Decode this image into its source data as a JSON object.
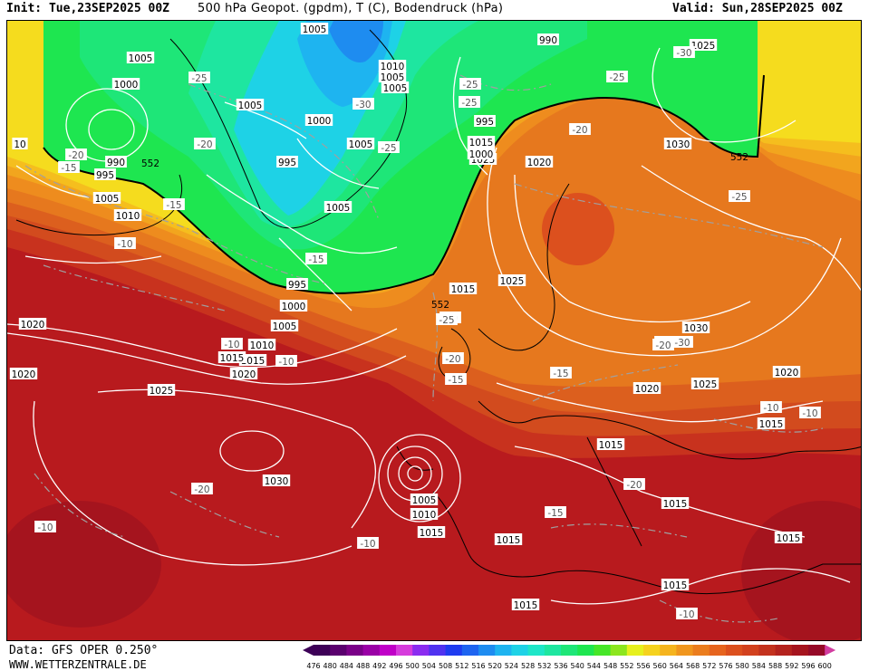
{
  "header": {
    "init": "Init: Tue,23SEP2025 00Z",
    "title": "500 hPa Geopot. (gpdm), T (C), Bodendruck (hPa)",
    "valid": "Valid: Sun,28SEP2025 00Z"
  },
  "footer": {
    "data_source": "Data: GFS OPER 0.250°",
    "website": "WWW.WETTERZENTRALE.DE"
  },
  "colorbar": {
    "levels": [
      "476",
      "480",
      "484",
      "488",
      "492",
      "496",
      "500",
      "504",
      "508",
      "512",
      "516",
      "520",
      "524",
      "528",
      "532",
      "536",
      "540",
      "544",
      "548",
      "552",
      "556",
      "560",
      "564",
      "568",
      "572",
      "576",
      "580",
      "584",
      "588",
      "592",
      "596",
      "600"
    ],
    "colors": [
      "#3d0057",
      "#5a006e",
      "#7a0088",
      "#9a00a6",
      "#c000c8",
      "#d63cdc",
      "#8b2cf0",
      "#5032f0",
      "#1f3cf0",
      "#1e64f0",
      "#1e8cf0",
      "#1eb4f0",
      "#1ed2e6",
      "#1ee6c8",
      "#1ee6a0",
      "#1ee678",
      "#1ee650",
      "#46e628",
      "#8ce61e",
      "#e6f01e",
      "#f5d21e",
      "#f5b41e",
      "#f0961e",
      "#eb7d1e",
      "#e6641e",
      "#dc501e",
      "#d2411e",
      "#c3321e",
      "#b4231e",
      "#a5141e",
      "#960a28",
      "#d23ca0"
    ]
  },
  "map": {
    "contour_line_color": "#ffffff",
    "temperature_line_color": "#a0a0a0",
    "border_color": "#000000",
    "pressure_labels": [
      {
        "text": "1005"
      },
      {
        "text": "1005"
      },
      {
        "text": "1000"
      },
      {
        "text": "1005"
      },
      {
        "text": "990"
      },
      {
        "text": "995"
      },
      {
        "text": "1005"
      },
      {
        "text": "1010"
      },
      {
        "text": "1005"
      },
      {
        "text": "1010"
      },
      {
        "text": "1000"
      },
      {
        "text": "1005"
      },
      {
        "text": "995"
      },
      {
        "text": "1005"
      },
      {
        "text": "995"
      },
      {
        "text": "1000"
      },
      {
        "text": "1005"
      },
      {
        "text": "1010"
      },
      {
        "text": "1015"
      },
      {
        "text": "1020"
      },
      {
        "text": "1020"
      },
      {
        "text": "1025"
      },
      {
        "text": "1030"
      },
      {
        "text": "1025"
      },
      {
        "text": "1005"
      },
      {
        "text": "1010"
      },
      {
        "text": "1015"
      },
      {
        "text": "1015"
      },
      {
        "text": "1015"
      },
      {
        "text": "1015"
      },
      {
        "text": "1015"
      },
      {
        "text": "1015"
      },
      {
        "text": "1025"
      },
      {
        "text": "1020"
      },
      {
        "text": "1030"
      },
      {
        "text": "1020"
      },
      {
        "text": "1025"
      },
      {
        "text": "1020"
      },
      {
        "text": "1015"
      },
      {
        "text": "1015"
      },
      {
        "text": "1015"
      },
      {
        "text": "1015"
      },
      {
        "text": "1030"
      },
      {
        "text": "1025"
      },
      {
        "text": "990"
      },
      {
        "text": "1000"
      },
      {
        "text": "1005"
      },
      {
        "text": "995"
      },
      {
        "text": "1015"
      },
      {
        "text": "1020"
      },
      {
        "text": "10"
      }
    ],
    "temperature_labels": [
      {
        "text": "-25"
      },
      {
        "text": "-20"
      },
      {
        "text": "-15"
      },
      {
        "text": "-15"
      },
      {
        "text": "-10"
      },
      {
        "text": "-30"
      },
      {
        "text": "-25"
      },
      {
        "text": "-20"
      },
      {
        "text": "-15"
      },
      {
        "text": "-25"
      },
      {
        "text": "-25"
      },
      {
        "text": "-30"
      },
      {
        "text": "-20"
      },
      {
        "text": "-15"
      },
      {
        "text": "-25"
      },
      {
        "text": "-25"
      },
      {
        "text": "-20"
      },
      {
        "text": "-15"
      },
      {
        "text": "-10"
      },
      {
        "text": "-20"
      },
      {
        "text": "-15"
      },
      {
        "text": "-20"
      },
      {
        "text": "-10"
      },
      {
        "text": "-10"
      },
      {
        "text": "-10"
      },
      {
        "text": "-10"
      },
      {
        "text": "-10"
      },
      {
        "text": "-10"
      },
      {
        "text": "-10"
      },
      {
        "text": "-30"
      },
      {
        "text": "-20"
      },
      {
        "text": "-25"
      },
      {
        "text": "-20"
      }
    ],
    "geopot_labels": [
      {
        "text": "552"
      },
      {
        "text": "552"
      },
      {
        "text": "552"
      }
    ]
  }
}
